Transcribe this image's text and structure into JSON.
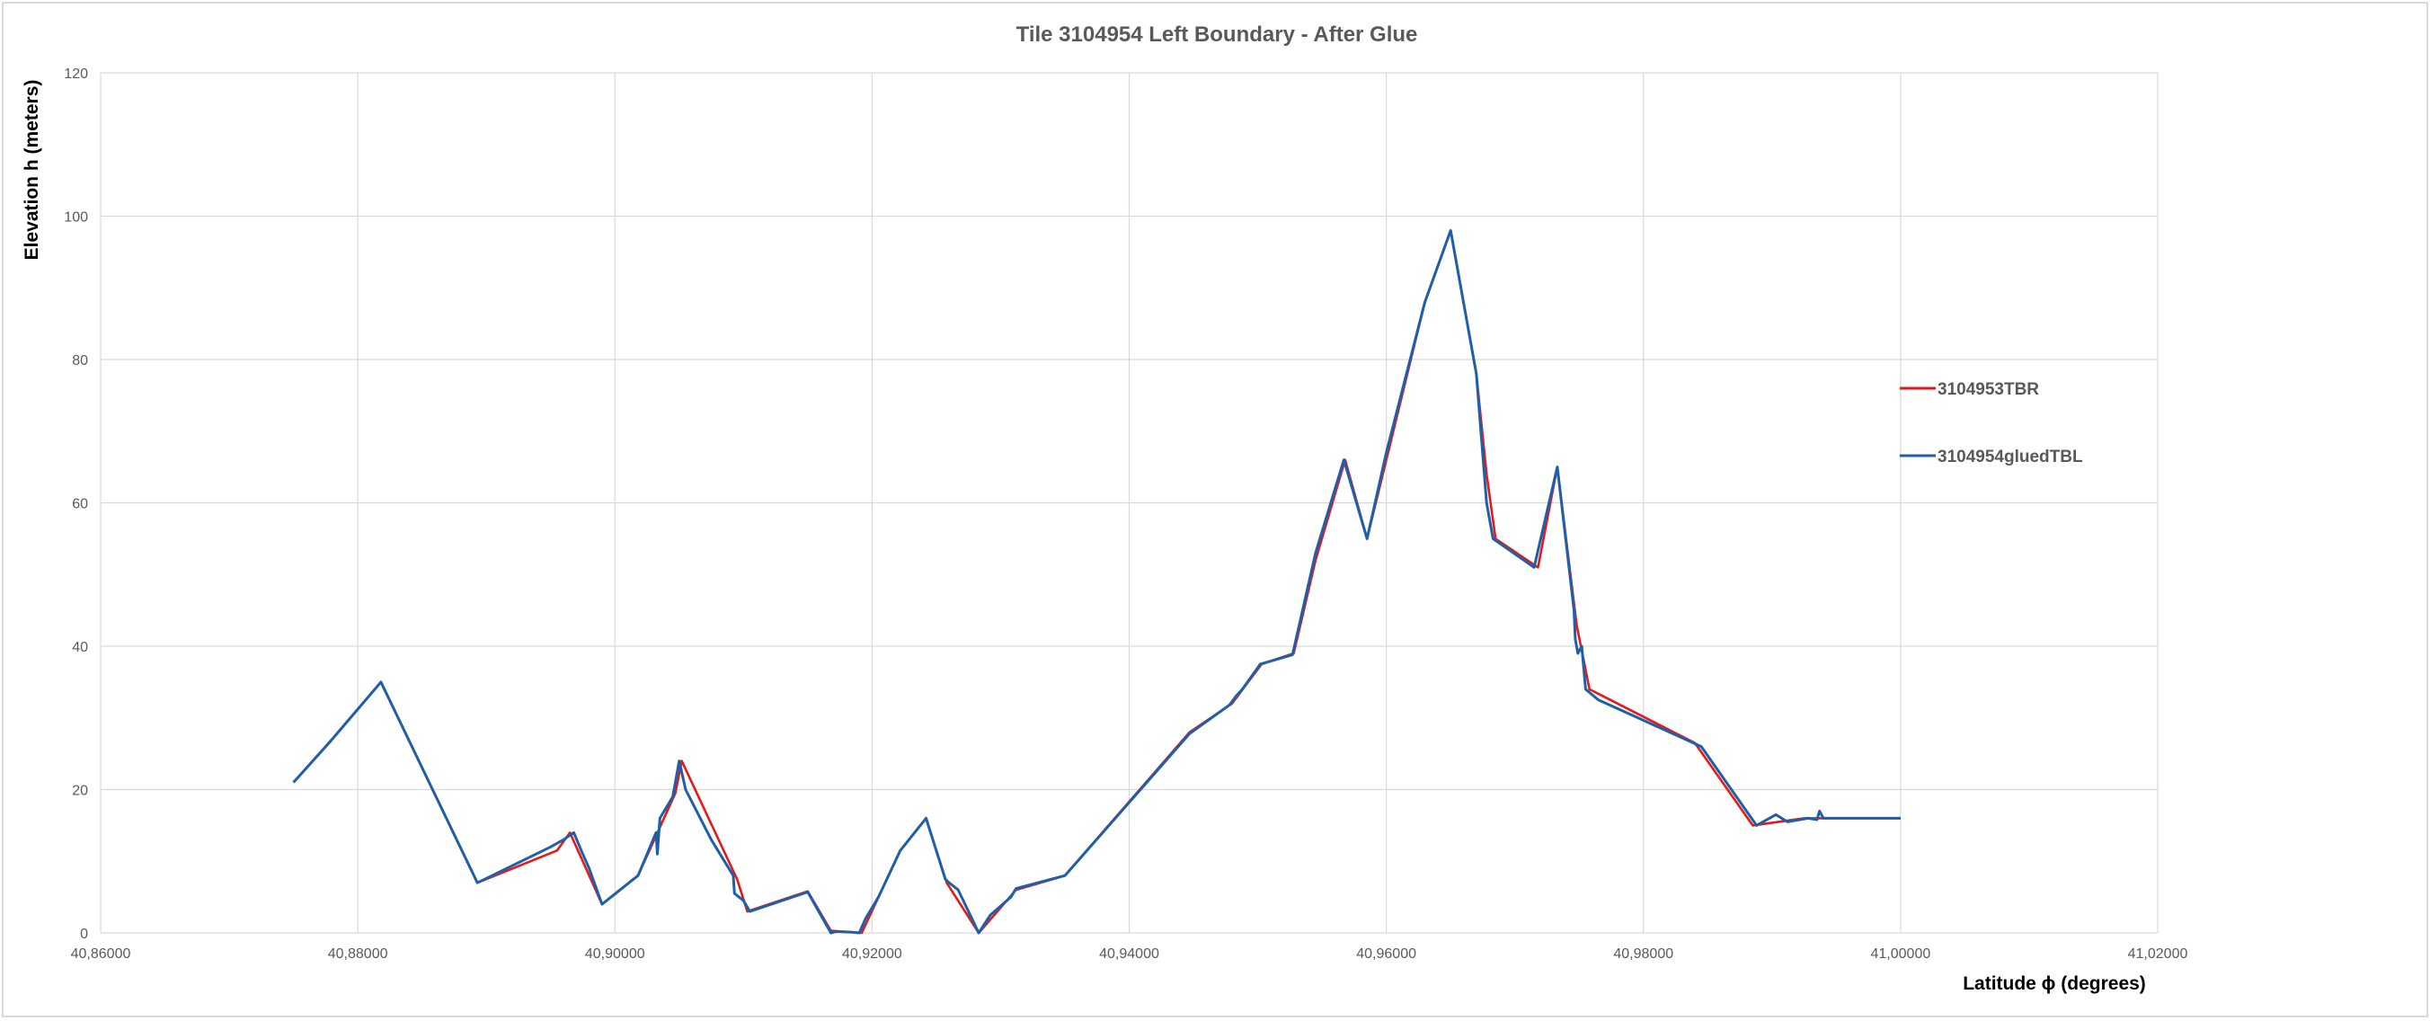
{
  "chart_data": {
    "type": "line",
    "title": "Tile 3104954 Left  Boundary - After Glue",
    "xlabel": "Latitude ϕ (degrees)",
    "ylabel": "Elevation h  (meters)",
    "xlim": [
      40.86,
      41.02
    ],
    "ylim": [
      0,
      120
    ],
    "x_ticks": [
      40.86,
      40.88,
      40.9,
      40.92,
      40.94,
      40.96,
      40.98,
      41.0,
      41.02
    ],
    "x_tick_labels": [
      "40,86000",
      "40,88000",
      "40,90000",
      "40,92000",
      "40,94000",
      "40,96000",
      "40,98000",
      "41,00000",
      "41,02000"
    ],
    "y_ticks": [
      0,
      20,
      40,
      60,
      80,
      100,
      120
    ],
    "y_tick_labels": [
      "0",
      "20",
      "40",
      "60",
      "80",
      "100",
      "120"
    ],
    "grid": true,
    "legend_position": "right",
    "series": [
      {
        "name": "3104953TBR",
        "color": "#e31a1c",
        "x": [
          40.875,
          40.8775,
          40.8818,
          40.8893,
          40.8955,
          40.8965,
          40.899,
          40.9018,
          40.9047,
          40.9052,
          40.9095,
          40.9103,
          40.915,
          40.9168,
          40.9192,
          40.9222,
          40.9242,
          40.9258,
          40.9283,
          40.9312,
          40.935,
          40.9447,
          40.948,
          40.9503,
          40.9528,
          40.9545,
          40.9568,
          40.9585,
          40.963,
          40.965,
          40.967,
          40.9678,
          40.9685,
          40.9718,
          40.9733,
          40.9748,
          40.9758,
          40.984,
          40.9885,
          40.9905,
          40.9925,
          41.0
        ],
        "y": [
          21.0,
          26.0,
          35.0,
          7.0,
          11.5,
          14.0,
          4.0,
          8.0,
          19.5,
          24.0,
          7.5,
          3.0,
          5.8,
          0.3,
          0.0,
          11.5,
          16.0,
          7.0,
          0.0,
          6.0,
          8.0,
          28.0,
          32.0,
          37.5,
          39.0,
          52.0,
          66.0,
          55.0,
          88.0,
          98.0,
          78.0,
          64.0,
          55.0,
          51.0,
          65.0,
          43.0,
          34.0,
          26.5,
          15.0,
          15.5,
          16.0,
          16.0
        ]
      },
      {
        "name": "3104954gluedTBL",
        "color": "#1f5fa8",
        "x": [
          40.875,
          40.8765,
          40.878,
          40.8818,
          40.8893,
          40.895,
          40.896,
          40.8968,
          40.8975,
          40.898,
          40.899,
          40.9018,
          40.9032,
          40.9033,
          40.9035,
          40.9045,
          40.905,
          40.9055,
          40.9075,
          40.9092,
          40.9093,
          40.91,
          40.9105,
          40.915,
          40.9168,
          40.9172,
          40.9185,
          40.919,
          40.9195,
          40.9205,
          40.9222,
          40.9242,
          40.9257,
          40.926,
          40.9267,
          40.9283,
          40.9292,
          40.9308,
          40.9312,
          40.935,
          40.9447,
          40.9478,
          40.9483,
          40.9488,
          40.9502,
          40.9527,
          40.9545,
          40.9567,
          40.9585,
          40.96,
          40.963,
          40.965,
          40.967,
          40.9678,
          40.9683,
          40.9715,
          40.9733,
          40.9746,
          40.9747,
          40.9749,
          40.9752,
          40.9755,
          40.9765,
          40.9845,
          40.9888,
          40.9903,
          40.9912,
          40.9928,
          40.9935,
          40.9937,
          40.994,
          41.0
        ],
        "y": [
          21.0,
          24.0,
          27.0,
          35.0,
          7.0,
          12.0,
          13.0,
          14.0,
          11.0,
          9.0,
          4.0,
          8.0,
          14.0,
          11.0,
          16.0,
          19.0,
          24.0,
          20.0,
          13.0,
          8.0,
          5.5,
          4.5,
          3.0,
          5.7,
          0.0,
          0.2,
          0.1,
          0.0,
          2.0,
          5.0,
          11.5,
          16.0,
          7.5,
          7.0,
          6.0,
          0.0,
          2.5,
          5.0,
          6.2,
          8.0,
          27.8,
          31.8,
          33.0,
          34.0,
          37.5,
          38.8,
          53.0,
          66.0,
          55.0,
          67.0,
          88.0,
          98.0,
          78.0,
          60.0,
          55.0,
          51.0,
          65.0,
          45.0,
          41.0,
          39.0,
          40.0,
          34.0,
          32.5,
          26.0,
          15.0,
          16.5,
          15.5,
          16.0,
          15.8,
          17.0,
          16.0,
          16.0
        ]
      }
    ]
  }
}
